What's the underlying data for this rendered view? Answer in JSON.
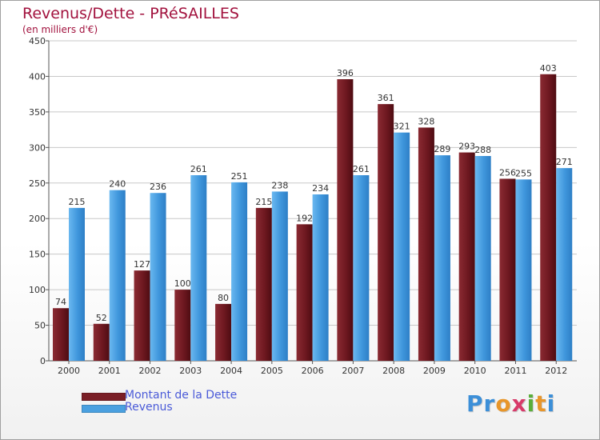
{
  "title": "Revenus/Dette - PRéSAILLES",
  "subtitle": "(en milliers d'€)",
  "chart_data": {
    "type": "bar",
    "title": "Revenus/Dette - PRéSAILLES",
    "subtitle": "(en milliers d'€)",
    "xlabel": "",
    "ylabel": "",
    "ylim": [
      0,
      450
    ],
    "yticks": [
      "0",
      "50",
      "100",
      "150",
      "200",
      "250",
      "300",
      "350",
      "400",
      "450"
    ],
    "grid": true,
    "legend_position": "bottom-left",
    "categories": [
      "2000",
      "2001",
      "2002",
      "2003",
      "2004",
      "2005",
      "2006",
      "2007",
      "2008",
      "2009",
      "2010",
      "2011",
      "2012"
    ],
    "series": [
      {
        "name": "Montant de la Dette",
        "color": "#7a1e26",
        "values": [
          74,
          52,
          127,
          100,
          80,
          215,
          192,
          396,
          361,
          328,
          293,
          256,
          403
        ],
        "labels": [
          "74",
          "52",
          "127",
          "100",
          "80",
          "215",
          "192",
          "396",
          "361",
          "328",
          "293",
          "256",
          "403"
        ]
      },
      {
        "name": "Revenus",
        "color": "#4aa0e0",
        "values": [
          215,
          240,
          236,
          261,
          251,
          238,
          234,
          261,
          321,
          289,
          288,
          255,
          271
        ],
        "labels": [
          "215",
          "240",
          "236",
          "261",
          "251",
          "238",
          "234",
          "261",
          "321",
          "289",
          "288",
          "255",
          "271"
        ]
      }
    ]
  },
  "legend": [
    {
      "label": "Montant de la Dette",
      "color": "#7a1e26"
    },
    {
      "label": "Revenus",
      "color": "#4aa0e0"
    }
  ],
  "logo": {
    "text": "Proxiti",
    "letters": [
      {
        "ch": "P",
        "color": "#3c8fd8"
      },
      {
        "ch": "r",
        "color": "#3c8fd8"
      },
      {
        "ch": "o",
        "color": "#e8962a"
      },
      {
        "ch": "x",
        "color": "#d83a6a"
      },
      {
        "ch": "i",
        "color": "#5aae3a"
      },
      {
        "ch": "t",
        "color": "#e8962a"
      },
      {
        "ch": "i",
        "color": "#3c8fd8"
      }
    ]
  }
}
